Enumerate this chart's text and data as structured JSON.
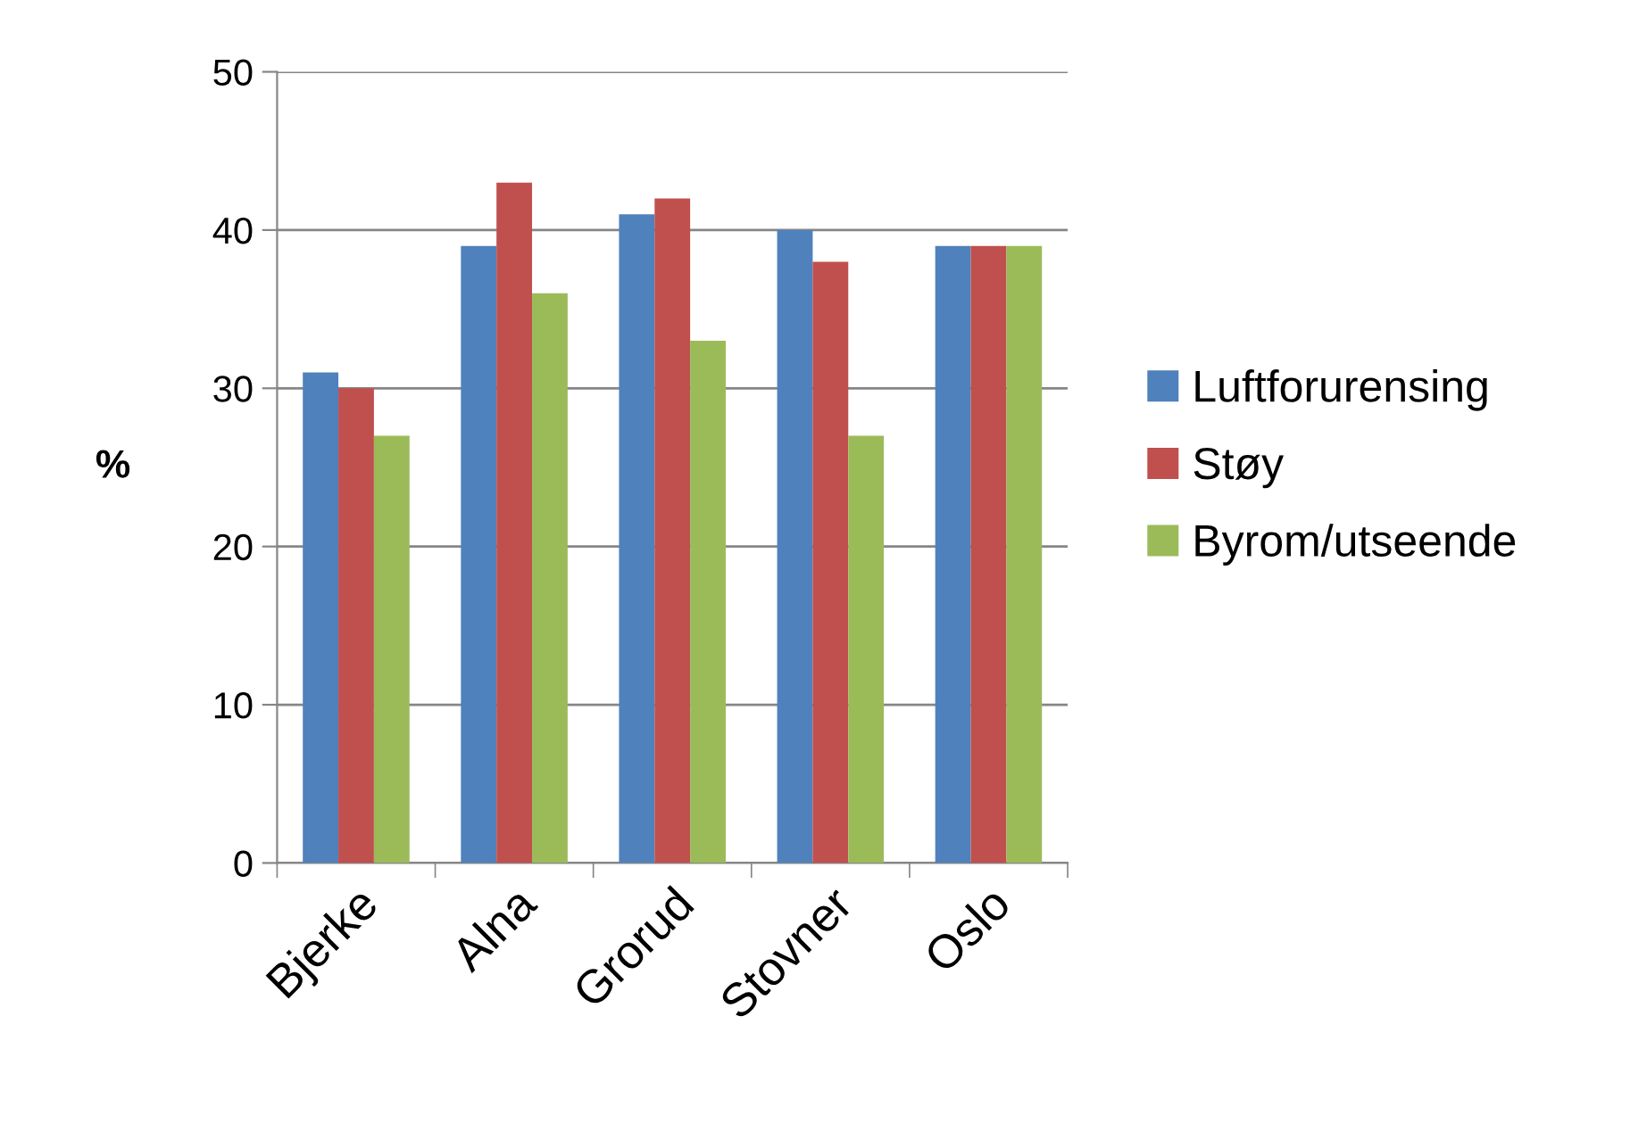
{
  "chart_data": {
    "type": "bar",
    "ylabel": "%",
    "categories": [
      "Bjerke",
      "Alna",
      "Grorud",
      "Stovner",
      "Oslo"
    ],
    "series": [
      {
        "name": "Luftforurensing",
        "color": "#4f81bd",
        "values": [
          31,
          39,
          41,
          40,
          39
        ]
      },
      {
        "name": "Støy",
        "color": "#c0504d",
        "values": [
          30,
          43,
          42,
          38,
          39
        ]
      },
      {
        "name": "Byrom/utseende",
        "color": "#9bbb59",
        "values": [
          27,
          36,
          33,
          27,
          39
        ]
      }
    ],
    "ylim": [
      0,
      50
    ],
    "yticks": [
      0,
      10,
      20,
      30,
      40,
      50
    ],
    "grid": "y",
    "legend": "right"
  }
}
